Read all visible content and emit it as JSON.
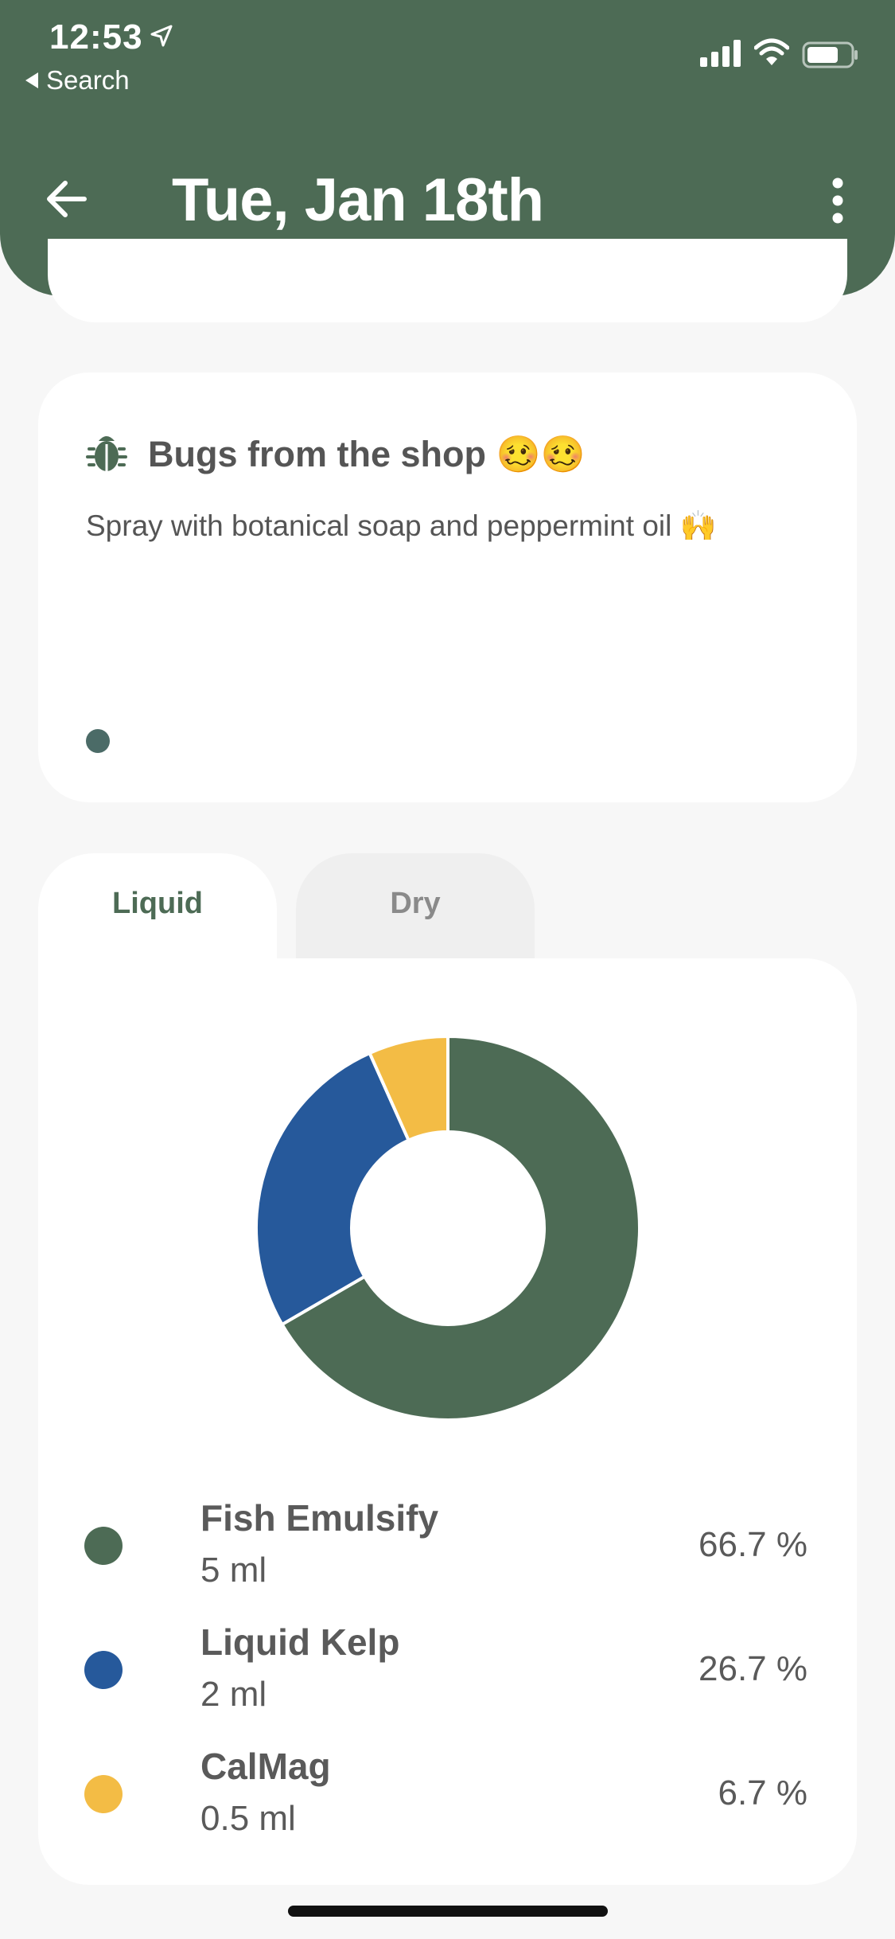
{
  "status_bar": {
    "time": "12:53",
    "back_app_label": "Search"
  },
  "header": {
    "title": "Tue, Jan 18th",
    "background_color": "#4d6b55"
  },
  "note": {
    "icon": "bug-icon",
    "title": "Bugs from the shop 🥴🥴",
    "body": "Spray with botanical soap and peppermint oil 🙌",
    "dot_color": "#4b6b67"
  },
  "tabs": [
    {
      "label": "Liquid",
      "selected": true
    },
    {
      "label": "Dry",
      "selected": false
    }
  ],
  "chart_data": {
    "type": "pie",
    "categories": [
      "Fish Emulsify",
      "Liquid Kelp",
      "CalMag"
    ],
    "values": [
      66.7,
      26.7,
      6.7
    ],
    "colors": [
      "#4d6b55",
      "#26599b",
      "#f3bc45"
    ],
    "title": "",
    "legend": "bottom"
  },
  "legend": [
    {
      "name": "Fish Emulsify",
      "amount": "5 ml",
      "percent": "66.7 %",
      "color": "#4d6b55"
    },
    {
      "name": "Liquid Kelp",
      "amount": "2 ml",
      "percent": "26.7 %",
      "color": "#26599b"
    },
    {
      "name": "CalMag",
      "amount": "0.5 ml",
      "percent": "6.7 %",
      "color": "#f3bc45"
    }
  ]
}
